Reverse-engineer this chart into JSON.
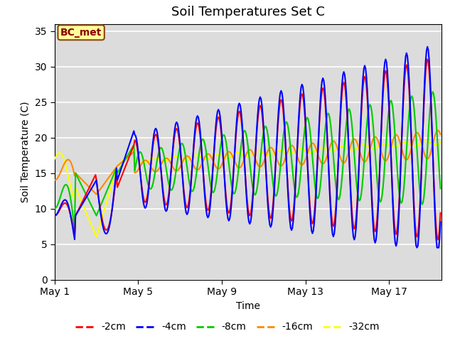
{
  "title": "Soil Temperatures Set C",
  "xlabel": "Time",
  "ylabel": "Soil Temperature (C)",
  "ylim": [
    0,
    36
  ],
  "yticks": [
    0,
    5,
    10,
    15,
    20,
    25,
    30,
    35
  ],
  "annotation_text": "BC_met",
  "annotation_color": "#8B0000",
  "annotation_bg": "#FFFF99",
  "annotation_edge": "#8B4513",
  "plot_bg": "#DCDCDC",
  "fig_bg": "#FFFFFF",
  "grid_color": "#FFFFFF",
  "colors": {
    "-2cm": "#FF0000",
    "-4cm": "#0000FF",
    "-8cm": "#00CC00",
    "-16cm": "#FF8800",
    "-32cm": "#FFFF00"
  },
  "x_tick_labels": [
    "May 1",
    "May 5",
    "May 9",
    "May 13",
    "May 17"
  ],
  "x_tick_positions": [
    0,
    4,
    8,
    12,
    16
  ],
  "xlim": [
    0,
    18.5
  ]
}
